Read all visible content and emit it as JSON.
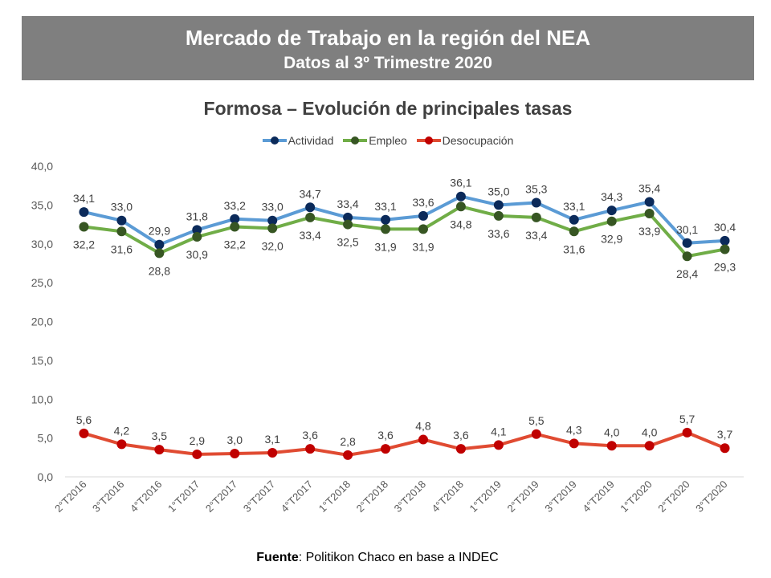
{
  "header": {
    "title": "Mercado de Trabajo en la región del NEA",
    "subtitle": "Datos al 3º Trimestre 2020"
  },
  "source": {
    "label": "Fuente",
    "text": ": Politikon Chaco en base a INDEC"
  },
  "chart_data": {
    "type": "line",
    "title": "Formosa – Evolución de principales tasas",
    "categories": [
      "2°T2016",
      "3°T2016",
      "4°T2016",
      "1°T2017",
      "2°T2017",
      "3°T2017",
      "4°T2017",
      "1°T2018",
      "2°T2018",
      "3°T2018",
      "4°T2018",
      "1°T2019",
      "2°T2019",
      "3°T2019",
      "4°T2019",
      "1°T2020",
      "2°T2020",
      "3°T2020"
    ],
    "series": [
      {
        "name": "Actividad",
        "line_color": "#5b9bd5",
        "marker_color": "#0b2a5a",
        "values": [
          34.1,
          33.0,
          29.9,
          31.8,
          33.2,
          33.0,
          34.7,
          33.4,
          33.1,
          33.6,
          36.1,
          35.0,
          35.3,
          33.1,
          34.3,
          35.4,
          30.1,
          30.4
        ],
        "labels": [
          "34,1",
          "33,0",
          "29,9",
          "31,8",
          "33,2",
          "33,0",
          "34,7",
          "33,4",
          "33,1",
          "33,6",
          "36,1",
          "35,0",
          "35,3",
          "33,1",
          "34,3",
          "35,4",
          "30,1",
          "30,4"
        ],
        "label_position": "above"
      },
      {
        "name": "Empleo",
        "line_color": "#70ad47",
        "marker_color": "#375623",
        "values": [
          32.2,
          31.6,
          28.8,
          30.9,
          32.2,
          32.0,
          33.4,
          32.5,
          31.9,
          31.9,
          34.8,
          33.6,
          33.4,
          31.6,
          32.9,
          33.9,
          28.4,
          29.3
        ],
        "labels": [
          "32,2",
          "31,6",
          "28,8",
          "30,9",
          "32,2",
          "32,0",
          "33,4",
          "32,5",
          "31,9",
          "31,9",
          "34,8",
          "33,6",
          "33,4",
          "31,6",
          "32,9",
          "33,9",
          "28,4",
          "29,3"
        ],
        "label_position": "below"
      },
      {
        "name": "Desocupación",
        "line_color": "#e04b32",
        "marker_color": "#c00000",
        "values": [
          5.6,
          4.2,
          3.5,
          2.9,
          3.0,
          3.1,
          3.6,
          2.8,
          3.6,
          4.8,
          3.6,
          4.1,
          5.5,
          4.3,
          4.0,
          4.0,
          5.7,
          3.7
        ],
        "labels": [
          "5,6",
          "4,2",
          "3,5",
          "2,9",
          "3,0",
          "3,1",
          "3,6",
          "2,8",
          "3,6",
          "4,8",
          "3,6",
          "4,1",
          "5,5",
          "4,3",
          "4,0",
          "4,0",
          "5,7",
          "3,7"
        ],
        "label_position": "above"
      }
    ],
    "ylim": [
      0,
      40
    ],
    "yticks": [
      0,
      5,
      10,
      15,
      20,
      25,
      30,
      35,
      40
    ],
    "ytick_labels": [
      "0,0",
      "5,0",
      "10,0",
      "15,0",
      "20,0",
      "25,0",
      "30,0",
      "35,0",
      "40,0"
    ],
    "xlabel": "",
    "ylabel": "",
    "grid": false,
    "legend_position": "top"
  }
}
